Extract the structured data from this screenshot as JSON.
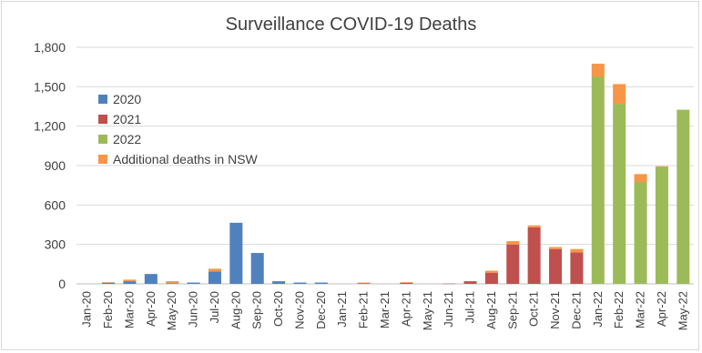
{
  "chart_data": {
    "type": "bar",
    "stacked": true,
    "title": "Surveillance COVID-19 Deaths",
    "xlabel": "",
    "ylabel": "",
    "ylim": [
      0,
      1800
    ],
    "yticks": [
      "0",
      "300",
      "600",
      "900",
      "1,200",
      "1,500",
      "1,800"
    ],
    "ytick_values": [
      0,
      300,
      600,
      900,
      1200,
      1500,
      1800
    ],
    "grid": true,
    "legend_position": "upper-left",
    "categories": [
      "Jan-20",
      "Feb-20",
      "Mar-20",
      "Apr-20",
      "May-20",
      "Jun-20",
      "Jul-20",
      "Aug-20",
      "Sep-20",
      "Oct-20",
      "Nov-20",
      "Dec-20",
      "Jan-21",
      "Feb-21",
      "Mar-21",
      "Apr-21",
      "May-21",
      "Jun-21",
      "Jul-21",
      "Aug-21",
      "Sep-21",
      "Oct-21",
      "Nov-21",
      "Dec-21",
      "Jan-22",
      "Feb-22",
      "Mar-22",
      "Apr-22",
      "May-22"
    ],
    "series": [
      {
        "name": "2020",
        "color": "#4f81bd",
        "values": [
          0,
          10,
          20,
          75,
          5,
          10,
          95,
          465,
          235,
          20,
          10,
          10,
          0,
          0,
          0,
          0,
          0,
          0,
          0,
          0,
          0,
          0,
          0,
          0,
          0,
          0,
          0,
          0,
          0
        ]
      },
      {
        "name": "2021",
        "color": "#c0504d",
        "values": [
          0,
          0,
          0,
          0,
          0,
          0,
          0,
          0,
          0,
          0,
          0,
          0,
          0,
          5,
          0,
          8,
          0,
          2,
          20,
          85,
          300,
          430,
          265,
          240,
          0,
          0,
          0,
          0,
          0
        ]
      },
      {
        "name": "2022",
        "color": "#9bbb59",
        "values": [
          0,
          0,
          0,
          0,
          0,
          0,
          0,
          0,
          0,
          0,
          0,
          0,
          0,
          0,
          0,
          0,
          0,
          0,
          0,
          0,
          0,
          0,
          0,
          0,
          1575,
          1370,
          775,
          890,
          1325
        ]
      },
      {
        "name": "Additional deaths in NSW",
        "color": "#f79646",
        "values": [
          0,
          2,
          12,
          0,
          15,
          0,
          20,
          0,
          0,
          0,
          0,
          0,
          0,
          5,
          0,
          5,
          0,
          0,
          0,
          15,
          25,
          15,
          15,
          25,
          100,
          150,
          60,
          5,
          0
        ]
      }
    ]
  }
}
